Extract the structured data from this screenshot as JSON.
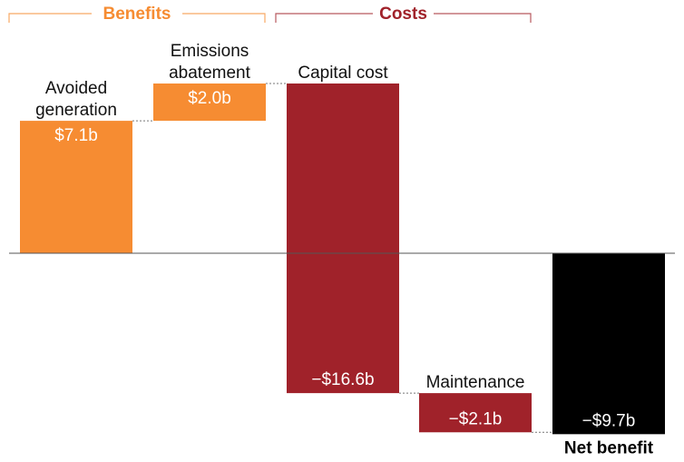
{
  "chart_data": {
    "type": "bar",
    "subtype": "waterfall",
    "categories": [
      "Avoided generation",
      "Emissions abatement",
      "Capital cost",
      "Maintenance",
      "Net benefit"
    ],
    "values": [
      7.1,
      2.0,
      -16.6,
      -2.1,
      -9.7
    ],
    "value_labels": [
      "$7.1b",
      "$2.0b",
      "−$16.6b",
      "−$2.1b",
      "−$9.7b"
    ],
    "groups": [
      {
        "label": "Benefits",
        "categories": [
          "Avoided generation",
          "Emissions abatement"
        ],
        "color": "#F68C32"
      },
      {
        "label": "Costs",
        "categories": [
          "Capital cost",
          "Maintenance"
        ],
        "color": "#A0222A"
      }
    ],
    "bar_colors": [
      "#F68C32",
      "#F68C32",
      "#A0222A",
      "#A0222A",
      "#000000"
    ],
    "label_lines": [
      [
        "Avoided",
        "generation"
      ],
      [
        "Emissions",
        "abatement"
      ],
      [
        "Capital cost"
      ],
      [
        "Maintenance"
      ],
      [
        "Net benefit"
      ]
    ],
    "ylim": [
      -10.6,
      9.9
    ],
    "grid": false,
    "legend": "none"
  }
}
